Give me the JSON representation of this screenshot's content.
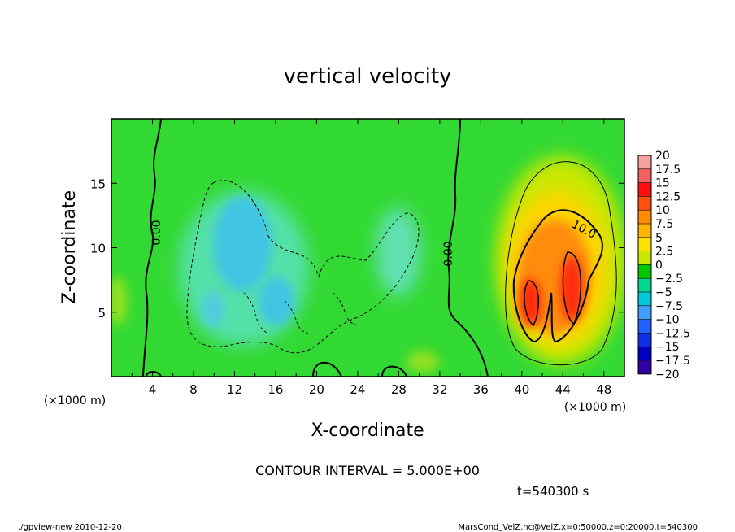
{
  "chart_data": {
    "type": "heatmap",
    "title": "vertical velocity",
    "xlabel": "X-coordinate",
    "ylabel": "Z-coordinate",
    "x_unit_left": "(×1000 m)",
    "x_unit_right": "(×1000 m)",
    "xlim": [
      0,
      50
    ],
    "ylim": [
      0,
      20
    ],
    "x_ticks": [
      "4",
      "8",
      "12",
      "16",
      "20",
      "24",
      "28",
      "32",
      "36",
      "40",
      "44",
      "48"
    ],
    "y_ticks": [
      "5",
      "10",
      "15"
    ],
    "contour_labels": [
      "0.00",
      "0.00",
      "10.0"
    ],
    "contour_interval_text": "CONTOUR INTERVAL = 5.000E+00",
    "time_text": "t=540300 s",
    "footer_left": "./gpview-new  2010-12-20",
    "footer_right": "MarsCond_VelZ.nc@VelZ,x=0:50000,z=0:20000,t=540300",
    "colorbar": {
      "labels": [
        "20",
        "17.5",
        "15",
        "12.5",
        "10",
        "7.5",
        "5",
        "2.5",
        "0",
        "−2.5",
        "−5",
        "−7.5",
        "−10",
        "−12.5",
        "−15",
        "−17.5",
        "−20"
      ],
      "colors": [
        "#f7a0a0",
        "#f76060",
        "#ff1010",
        "#ff5010",
        "#ff8c00",
        "#ffb400",
        "#ffe000",
        "#c8e800",
        "#00c800",
        "#00d890",
        "#00c8d8",
        "#40a0ff",
        "#2060ff",
        "#1030e8",
        "#0000c0",
        "#3000a0",
        "#7000b0"
      ]
    },
    "features": [
      {
        "name": "updraft-left",
        "x": 40.5,
        "z": 6,
        "value": 17
      },
      {
        "name": "updraft-right",
        "x": 44.5,
        "z": 8,
        "value": 17
      },
      {
        "name": "downdraft",
        "x": 13.5,
        "z": 11,
        "value": -9
      }
    ]
  }
}
